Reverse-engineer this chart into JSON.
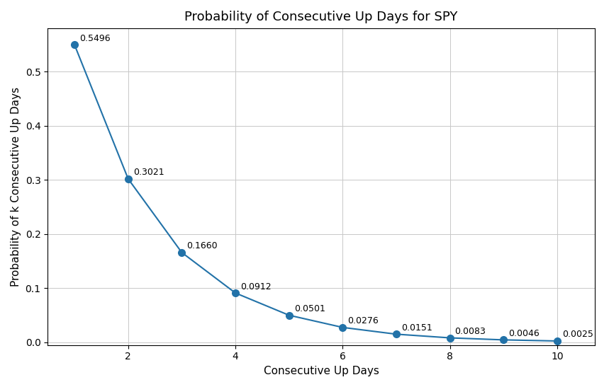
{
  "title": "Probability of Consecutive Up Days for SPY",
  "xlabel": "Consecutive Up Days",
  "ylabel": "Probability of k Consecutive Up Days",
  "x": [
    1,
    2,
    3,
    4,
    5,
    6,
    7,
    8,
    9,
    10
  ],
  "y": [
    0.5496,
    0.3021,
    0.166,
    0.0912,
    0.0501,
    0.0276,
    0.0151,
    0.0083,
    0.0046,
    0.0025
  ],
  "labels": [
    "0.5496",
    "0.3021",
    "0.1660",
    "0.0912",
    "0.0501",
    "0.0276",
    "0.0151",
    "0.0083",
    "0.0046",
    "0.0025"
  ],
  "xticks": [
    2,
    4,
    6,
    8,
    10
  ],
  "line_color": "#2272a8",
  "marker_color": "#2272a8",
  "marker_size": 7,
  "line_width": 1.5,
  "xlim": [
    0.5,
    10.7
  ],
  "ylim": [
    -0.005,
    0.58
  ],
  "title_fontsize": 13,
  "label_fontsize": 11,
  "tick_fontsize": 10,
  "annotation_fontsize": 9,
  "background_color": "#ffffff",
  "grid_color": "#c8c8c8"
}
